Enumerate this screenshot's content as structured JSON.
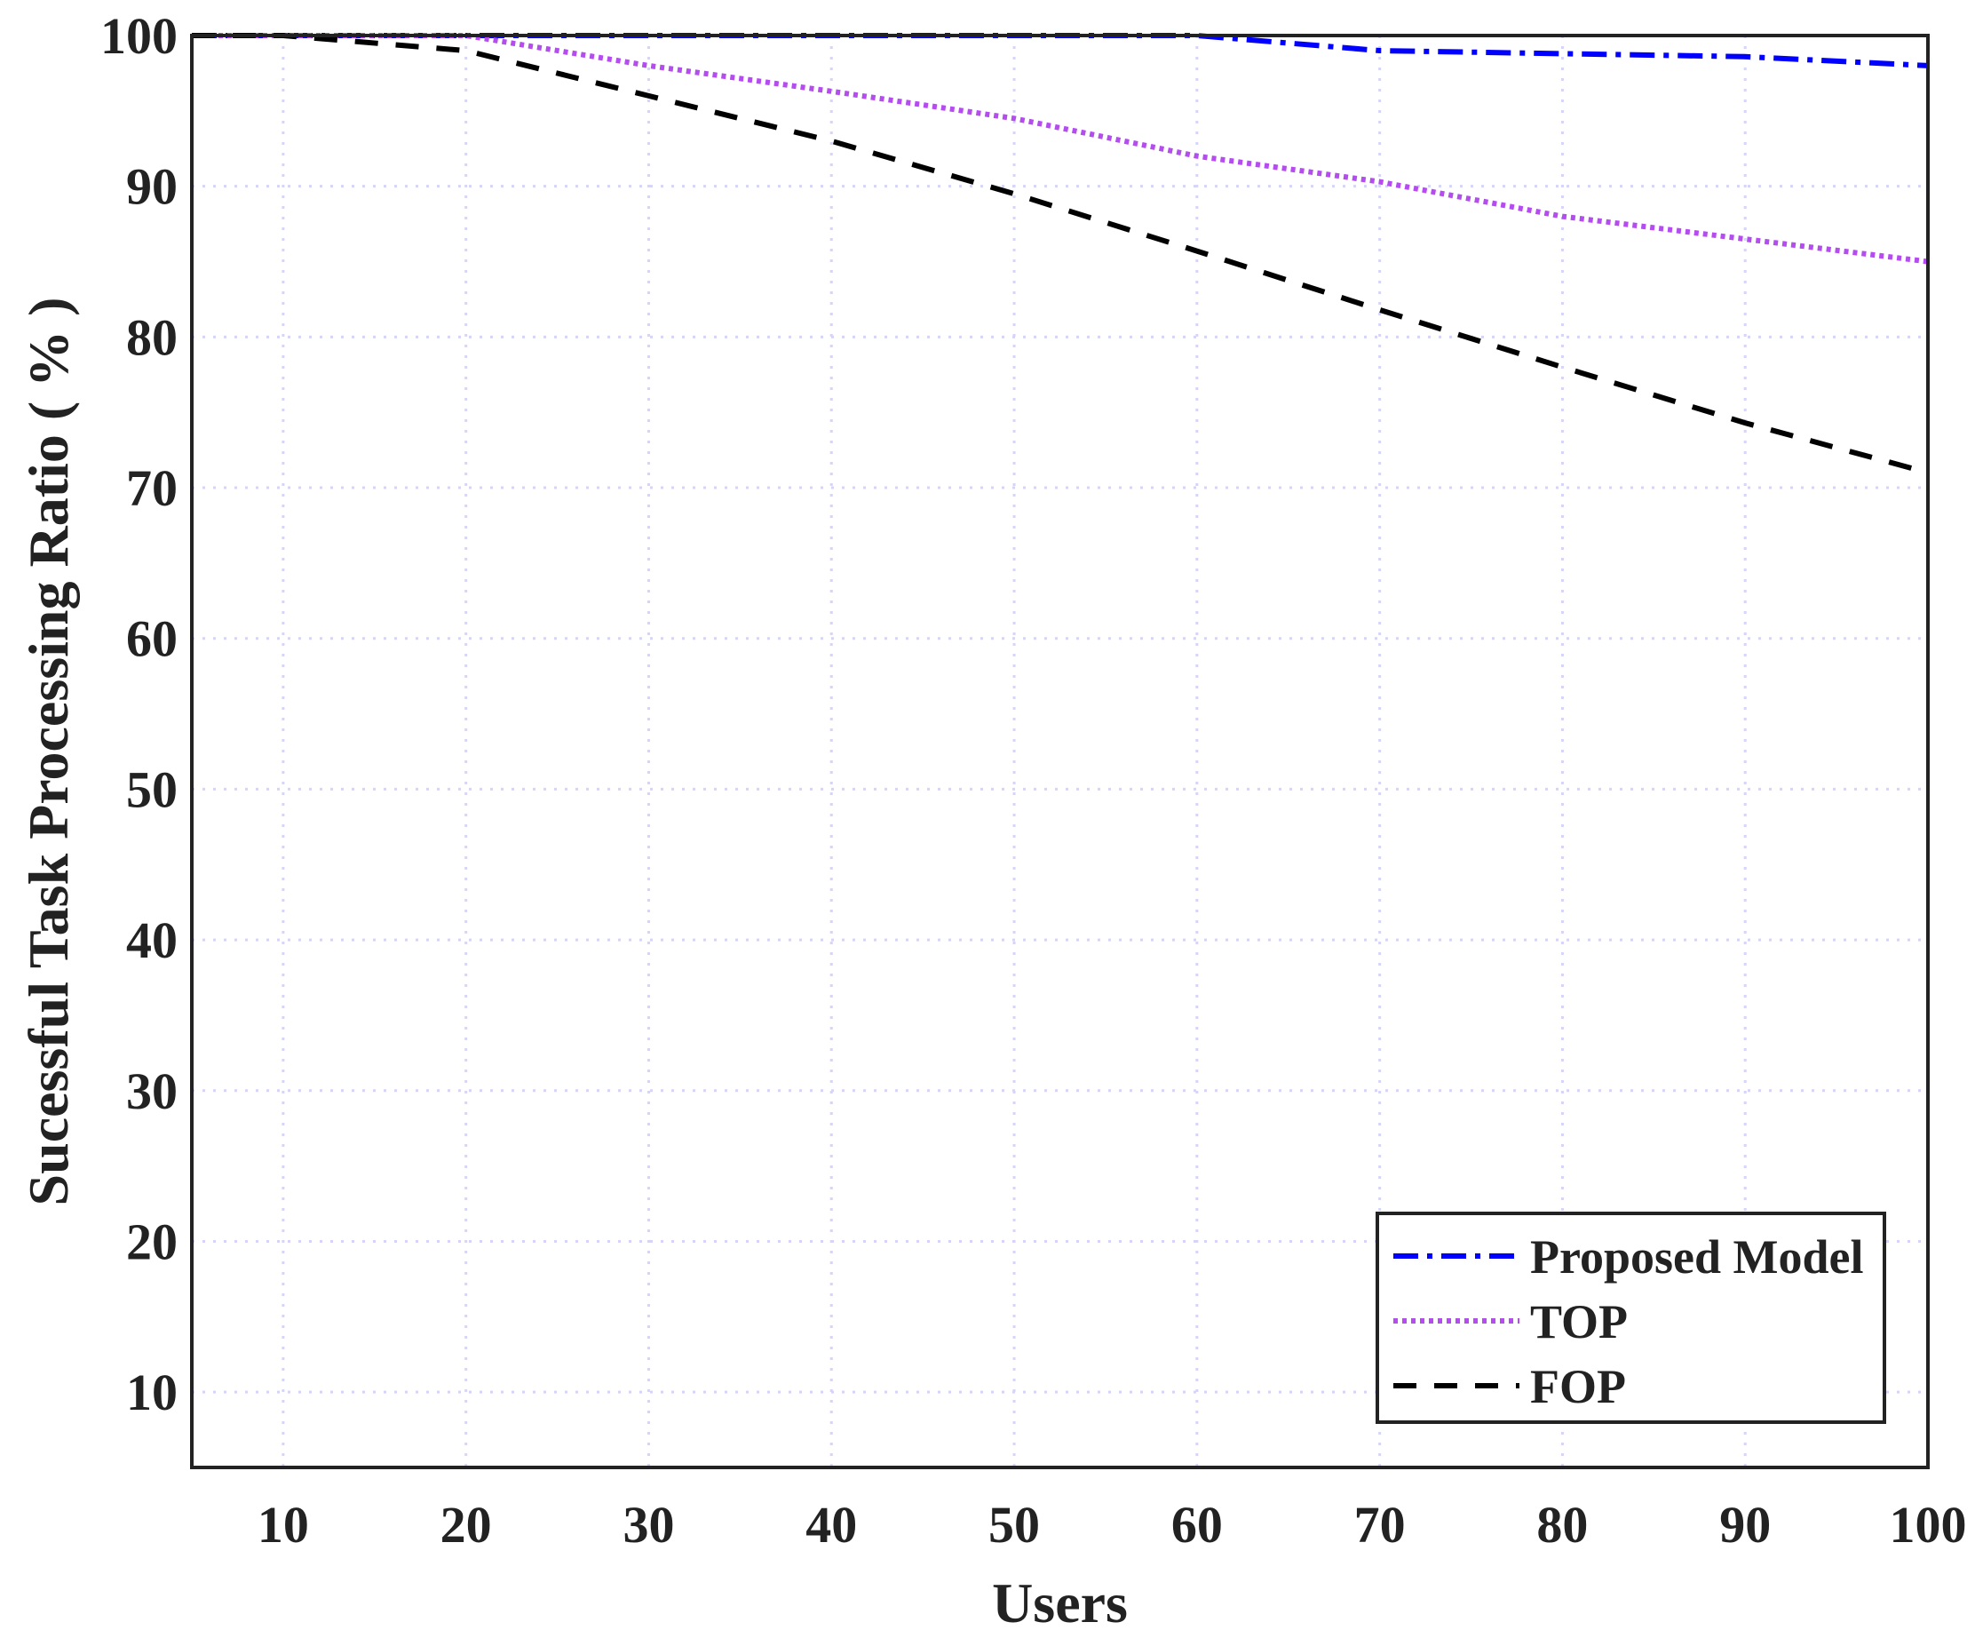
{
  "chart_data": {
    "type": "line",
    "title": "",
    "xlabel": "Users",
    "ylabel": "Sucessful Task Processing Ratio ( % )",
    "xlim": [
      5,
      100
    ],
    "ylim": [
      5,
      100
    ],
    "xticks": [
      10,
      20,
      30,
      40,
      50,
      60,
      70,
      80,
      90,
      100
    ],
    "yticks": [
      10,
      20,
      30,
      40,
      50,
      60,
      70,
      80,
      90,
      100
    ],
    "grid": true,
    "legend_position": "bottom-right",
    "series": [
      {
        "name": "Proposed Model",
        "color": "#0000ff",
        "dash": "dash-dot",
        "x": [
          5,
          10,
          20,
          30,
          40,
          50,
          60,
          70,
          80,
          90,
          100
        ],
        "y": [
          100,
          100,
          100,
          100,
          100,
          100,
          100,
          99,
          98.8,
          98.6,
          98
        ]
      },
      {
        "name": "TOP",
        "color": "#b44cf0",
        "dash": "dotted",
        "x": [
          5,
          10,
          20,
          30,
          40,
          50,
          60,
          70,
          80,
          90,
          100
        ],
        "y": [
          100,
          100,
          100,
          98,
          96.3,
          94.5,
          92,
          90.3,
          88,
          86.5,
          85
        ]
      },
      {
        "name": "FOP",
        "color": "#000000",
        "dash": "dashed",
        "x": [
          5,
          10,
          20,
          30,
          40,
          50,
          60,
          70,
          80,
          90,
          100
        ],
        "y": [
          100,
          100,
          99,
          96,
          93,
          89.5,
          85.7,
          81.8,
          78,
          74.3,
          71
        ]
      }
    ]
  }
}
